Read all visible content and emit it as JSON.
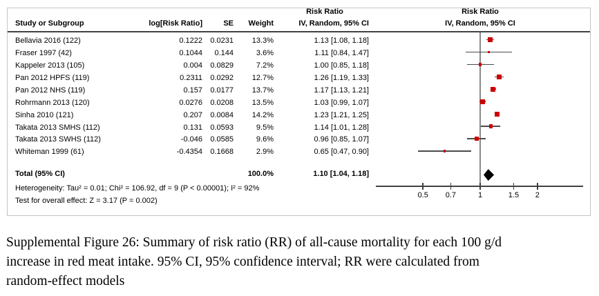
{
  "figure": {
    "table": {
      "headers": {
        "study": "Study or Subgroup",
        "log_rr": "log[Risk Ratio]",
        "se": "SE",
        "weight": "Weight",
        "effect_measure": "Risk Ratio",
        "method": "IV, Random, 95% CI"
      },
      "plot_headers": {
        "effect_measure": "Risk Ratio",
        "method": "IV, Random, 95% CI"
      },
      "rows": [
        {
          "study": "Bellavia 2016 (122)",
          "log_rr": "0.1222",
          "se": "0.0231",
          "weight": "13.3%",
          "ci": "1.13 [1.08, 1.18]"
        },
        {
          "study": "Fraser 1997 (42)",
          "log_rr": "0.1044",
          "se": "0.144",
          "weight": "3.6%",
          "ci": "1.11 [0.84, 1.47]"
        },
        {
          "study": "Kappeler 2013 (105)",
          "log_rr": "0.004",
          "se": "0.0829",
          "weight": "7.2%",
          "ci": "1.00 [0.85, 1.18]"
        },
        {
          "study": "Pan 2012 HPFS (119)",
          "log_rr": "0.2311",
          "se": "0.0292",
          "weight": "12.7%",
          "ci": "1.26 [1.19, 1.33]"
        },
        {
          "study": "Pan 2012 NHS (119)",
          "log_rr": "0.157",
          "se": "0.0177",
          "weight": "13.7%",
          "ci": "1.17 [1.13, 1.21]"
        },
        {
          "study": "Rohrmann 2013 (120)",
          "log_rr": "0.0276",
          "se": "0.0208",
          "weight": "13.5%",
          "ci": "1.03 [0.99, 1.07]"
        },
        {
          "study": "Sinha 2010 (121)",
          "log_rr": "0.207",
          "se": "0.0084",
          "weight": "14.2%",
          "ci": "1.23 [1.21, 1.25]"
        },
        {
          "study": "Takata 2013 SMHS (112)",
          "log_rr": "0.131",
          "se": "0.0593",
          "weight": "9.5%",
          "ci": "1.14 [1.01, 1.28]"
        },
        {
          "study": "Takata 2013 SWHS (112)",
          "log_rr": "-0.046",
          "se": "0.0585",
          "weight": "9.6%",
          "ci": "0.96 [0.85, 1.07]"
        },
        {
          "study": "Whiteman 1999 (61)",
          "log_rr": "-0.4354",
          "se": "0.1668",
          "weight": "2.9%",
          "ci": "0.65 [0.47, 0.90]"
        }
      ],
      "total": {
        "label": "Total (95% CI)",
        "weight": "100.0%",
        "ci": "1.10 [1.04, 1.18]"
      },
      "heterogeneity": "Heterogeneity: Tau² = 0.01; Chi² = 106.92, df = 9 (P < 0.00001); I² = 92%",
      "overall_effect": "Test for overall effect: Z = 3.17 (P = 0.002)"
    },
    "caption": {
      "lines": [
        "Supplemental Figure 26: Summary of risk ratio (RR) of all-cause mortality for each 100 g/d",
        "increase in red meat intake. 95% CI, 95% confidence interval; RR were calculated from",
        "random-effect models"
      ]
    }
  },
  "chart_data": {
    "type": "scatter",
    "subtype": "forest-plot",
    "title": "Risk Ratio",
    "subtitle": "IV, Random, 95% CI",
    "x_scale": "log",
    "x_ticks": [
      0.5,
      0.7,
      1,
      1.5,
      2
    ],
    "x_range": [
      0.28,
      3.5
    ],
    "reference_line": 1,
    "studies": [
      {
        "name": "Bellavia 2016 (122)",
        "rr": 1.13,
        "lo": 1.08,
        "hi": 1.18,
        "weight_pct": 13.3
      },
      {
        "name": "Fraser 1997 (42)",
        "rr": 1.11,
        "lo": 0.84,
        "hi": 1.47,
        "weight_pct": 3.6
      },
      {
        "name": "Kappeler 2013 (105)",
        "rr": 1.0,
        "lo": 0.85,
        "hi": 1.18,
        "weight_pct": 7.2
      },
      {
        "name": "Pan 2012 HPFS (119)",
        "rr": 1.26,
        "lo": 1.19,
        "hi": 1.33,
        "weight_pct": 12.7
      },
      {
        "name": "Pan 2012 NHS (119)",
        "rr": 1.17,
        "lo": 1.13,
        "hi": 1.21,
        "weight_pct": 13.7
      },
      {
        "name": "Rohrmann 2013 (120)",
        "rr": 1.03,
        "lo": 0.99,
        "hi": 1.07,
        "weight_pct": 13.5
      },
      {
        "name": "Sinha 2010 (121)",
        "rr": 1.23,
        "lo": 1.21,
        "hi": 1.25,
        "weight_pct": 14.2
      },
      {
        "name": "Takata 2013 SMHS (112)",
        "rr": 1.14,
        "lo": 1.01,
        "hi": 1.28,
        "weight_pct": 9.5
      },
      {
        "name": "Takata 2013 SWHS (112)",
        "rr": 0.96,
        "lo": 0.85,
        "hi": 1.07,
        "weight_pct": 9.6
      },
      {
        "name": "Whiteman 1999 (61)",
        "rr": 0.65,
        "lo": 0.47,
        "hi": 0.9,
        "weight_pct": 2.9
      }
    ],
    "total": {
      "name": "Total (95% CI)",
      "rr": 1.1,
      "lo": 1.04,
      "hi": 1.18,
      "weight_pct": 100.0
    },
    "colors": {
      "marker": "#cc0000",
      "ci_line": "#4a4a4a",
      "diamond": "#000000",
      "reference_line": "#8a8a8a",
      "axis": "#404040"
    }
  }
}
